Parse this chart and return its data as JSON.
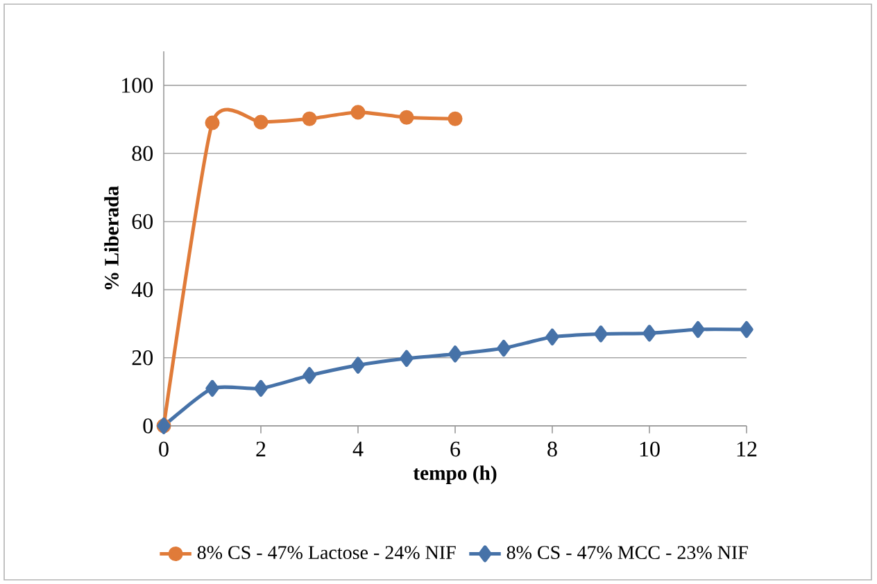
{
  "chart_data": {
    "type": "line",
    "xlabel": "tempo (h)",
    "ylabel": "% Liberada",
    "x": [
      0,
      1,
      2,
      3,
      4,
      5,
      6,
      7,
      8,
      9,
      10,
      11,
      12
    ],
    "series": [
      {
        "name": "8% CS - 47% Lactose - 24% NIF",
        "color": "#e07b39",
        "marker": "circle",
        "values": [
          0,
          89,
          89.2,
          90.2,
          92.1,
          90.6,
          90.2,
          null,
          null,
          null,
          null,
          null,
          null
        ]
      },
      {
        "name": "8% CS - 47% MCC - 23% NIF",
        "color": "#4672a8",
        "marker": "diamond",
        "values": [
          0,
          11,
          11,
          14.8,
          17.8,
          19.8,
          21.1,
          22.8,
          26.1,
          27,
          27.2,
          28.3,
          28.3
        ]
      }
    ],
    "xlim": [
      0,
      12
    ],
    "xticks": [
      0,
      2,
      4,
      6,
      8,
      10,
      12
    ],
    "ylim": [
      0,
      110
    ],
    "yticks": [
      0,
      20,
      40,
      60,
      80,
      100
    ],
    "grid": "y",
    "legend": "bottom"
  }
}
